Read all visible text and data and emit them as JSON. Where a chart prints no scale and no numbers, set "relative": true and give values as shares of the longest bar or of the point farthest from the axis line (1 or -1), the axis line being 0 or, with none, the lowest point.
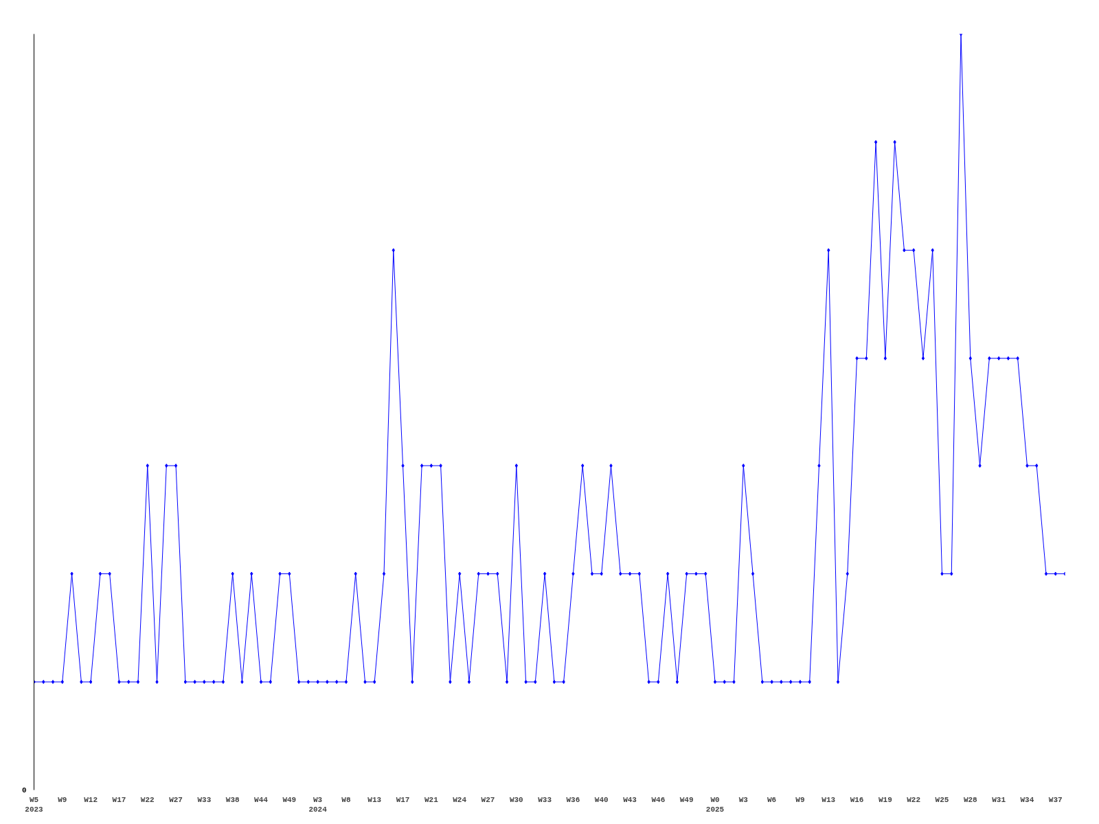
{
  "chart_data": {
    "type": "line",
    "relative": true,
    "marker": "diamond",
    "line_style": "solid",
    "annotations": [
      "0"
    ],
    "categories": [
      "W5\n2023",
      null,
      null,
      "W9",
      null,
      null,
      "W12",
      null,
      null,
      "W17",
      null,
      null,
      "W22",
      null,
      null,
      "W27",
      null,
      null,
      "W33",
      null,
      null,
      "W38",
      null,
      null,
      "W44",
      null,
      null,
      "W49",
      null,
      null,
      "W3\n2024",
      null,
      null,
      "W8",
      null,
      null,
      "W13",
      null,
      null,
      "W17",
      null,
      null,
      "W21",
      null,
      null,
      "W24",
      null,
      null,
      "W27",
      null,
      null,
      "W30",
      null,
      null,
      "W33",
      null,
      null,
      "W36",
      null,
      null,
      "W40",
      null,
      null,
      "W43",
      null,
      null,
      "W46",
      null,
      null,
      "W49",
      null,
      null,
      "W0\n2025",
      null,
      null,
      "W3",
      null,
      null,
      "W6",
      null,
      null,
      "W9",
      null,
      null,
      "W13",
      null,
      null,
      "W16",
      null,
      null,
      "W19",
      null,
      null,
      "W22",
      null,
      null,
      "W25",
      null,
      null,
      "W28",
      null,
      null,
      "W31",
      null,
      null,
      "W34",
      null,
      null,
      "W37",
      null
    ],
    "series": [
      {
        "color": "#0000ff",
        "values": [
          0.143,
          0.143,
          0.143,
          0.143,
          0.286,
          0.143,
          0.143,
          0.286,
          0.286,
          0.143,
          0.143,
          0.143,
          0.429,
          0.143,
          0.429,
          0.429,
          0.143,
          0.143,
          0.143,
          0.143,
          0.143,
          0.286,
          0.143,
          0.286,
          0.143,
          0.143,
          0.286,
          0.286,
          0.143,
          0.143,
          0.143,
          0.143,
          0.143,
          0.143,
          0.286,
          0.143,
          0.143,
          0.286,
          0.714,
          0.429,
          0.143,
          0.429,
          0.429,
          0.429,
          0.143,
          0.286,
          0.143,
          0.286,
          0.286,
          0.286,
          0.143,
          0.429,
          0.143,
          0.143,
          0.286,
          0.143,
          0.143,
          0.286,
          0.429,
          0.286,
          0.286,
          0.429,
          0.286,
          0.286,
          0.286,
          0.143,
          0.143,
          0.286,
          0.143,
          0.286,
          0.286,
          0.286,
          0.143,
          0.143,
          0.143,
          0.429,
          0.286,
          0.143,
          0.143,
          0.143,
          0.143,
          0.143,
          0.143,
          0.429,
          0.714,
          0.143,
          0.286,
          0.571,
          0.571,
          0.857,
          0.571,
          0.857,
          0.714,
          0.714,
          0.571,
          0.714,
          0.286,
          0.286,
          1,
          0.571,
          0.429,
          0.571,
          0.571,
          0.571,
          0.571,
          0.429,
          0.429,
          0.286,
          0.286,
          0.286
        ]
      }
    ]
  }
}
